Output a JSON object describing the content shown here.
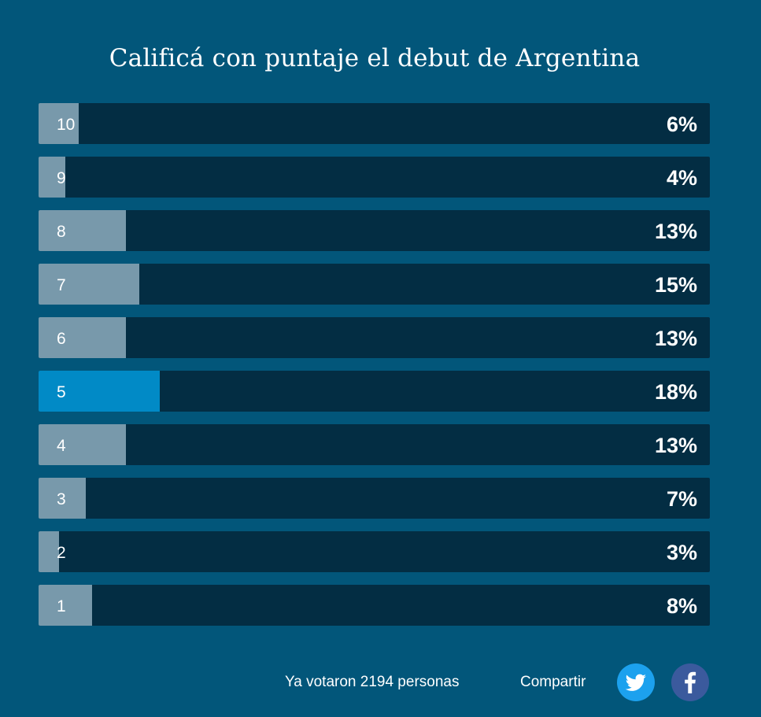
{
  "title": "Calificá con puntaje el debut de Argentina",
  "rows": [
    {
      "label": "10",
      "percent": "6%",
      "value": 6
    },
    {
      "label": "9",
      "percent": "4%",
      "value": 4
    },
    {
      "label": "8",
      "percent": "13%",
      "value": 13
    },
    {
      "label": "7",
      "percent": "15%",
      "value": 15
    },
    {
      "label": "6",
      "percent": "13%",
      "value": 13
    },
    {
      "label": "5",
      "percent": "18%",
      "value": 18,
      "selected": true
    },
    {
      "label": "4",
      "percent": "13%",
      "value": 13
    },
    {
      "label": "3",
      "percent": "7%",
      "value": 7
    },
    {
      "label": "2",
      "percent": "3%",
      "value": 3
    },
    {
      "label": "1",
      "percent": "8%",
      "value": 8
    }
  ],
  "footer": {
    "votes_text": "Ya votaron 2194 personas",
    "share_label": "Compartir",
    "twitter_icon": "twitter-icon",
    "facebook_icon": "facebook-icon"
  },
  "colors": {
    "background": "#02567a",
    "track": "#032d43",
    "fill": "#7899ab",
    "selected_fill": "#018ac6",
    "twitter": "#1ca1ee",
    "facebook": "#3b5a9d"
  }
}
